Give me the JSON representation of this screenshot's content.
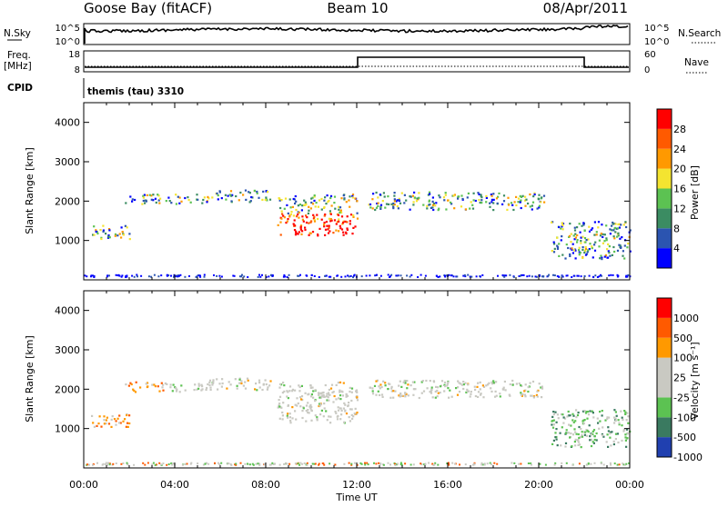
{
  "header": {
    "station": "Goose Bay (fitACF)",
    "beam": "Beam 10",
    "date": "08/Apr/2011"
  },
  "aux_panels": {
    "nsky_label": "N.Sky",
    "nsky_ticks": [
      "10^5",
      "10^0"
    ],
    "nsearch_label": "N.Search",
    "nsearch_ticks": [
      "10^5",
      "10^0"
    ],
    "freq_label": "Freq.",
    "freq_unit": "[MHz]",
    "freq_ticks": [
      "18",
      "8"
    ],
    "nave_label": "Nave",
    "nave_ticks": [
      "60",
      "0"
    ],
    "cpid_label": "CPID",
    "cpid_value": "themis (tau) 3310"
  },
  "chart_data": [
    {
      "type": "heatmap",
      "panel": "power",
      "ylabel": "Slant Range [km]",
      "x_ticks": [
        "00:00",
        "04:00",
        "08:00",
        "12:00",
        "16:00",
        "20:00",
        "00:00"
      ],
      "y_ticks": [
        "1000",
        "2000",
        "3000",
        "4000"
      ],
      "ylim": [
        0,
        4500
      ],
      "colorbar_label": "Power [dB]",
      "colorbar_ticks": [
        "28",
        "24",
        "20",
        "16",
        "12",
        "8",
        "4"
      ],
      "colorbar_colors": [
        "#0000ff",
        "#2b54b0",
        "#3b8c62",
        "#5cc252",
        "#f4e430",
        "#ff9900",
        "#ff5a00",
        "#ff0000"
      ],
      "echo_bands": [
        {
          "x": [
            0.3,
            2.0
          ],
          "y": [
            1050,
            1400
          ]
        },
        {
          "x": [
            1.8,
            5.5
          ],
          "y": [
            1950,
            2200
          ]
        },
        {
          "x": [
            5.5,
            8.2
          ],
          "y": [
            2000,
            2300
          ]
        },
        {
          "x": [
            8.5,
            12.0
          ],
          "y": [
            1150,
            2200
          ]
        },
        {
          "x": [
            12.5,
            20.2
          ],
          "y": [
            1800,
            2250
          ]
        },
        {
          "x": [
            20.5,
            24.0
          ],
          "y": [
            550,
            1500
          ]
        }
      ]
    },
    {
      "type": "heatmap",
      "panel": "velocity",
      "ylabel": "Slant Range [km]",
      "xlabel": "Time UT",
      "x_ticks": [
        "00:00",
        "04:00",
        "08:00",
        "12:00",
        "16:00",
        "20:00",
        "00:00"
      ],
      "y_ticks": [
        "1000",
        "2000",
        "3000",
        "4000"
      ],
      "ylim": [
        0,
        4500
      ],
      "colorbar_label": "Velocity [m s⁻¹]",
      "colorbar_ticks": [
        "1000",
        "500",
        "100",
        "25",
        "-25",
        "-100",
        "-500",
        "-1000"
      ],
      "colorbar_colors": [
        "#2040b0",
        "#3a7a60",
        "#5cc252",
        "#c9c9c2",
        "#c9c9c2",
        "#ff9900",
        "#ff5a00",
        "#ff0000"
      ],
      "echo_bands": [
        {
          "x": [
            0.3,
            2.0
          ],
          "y": [
            1050,
            1400
          ]
        },
        {
          "x": [
            1.8,
            5.5
          ],
          "y": [
            1950,
            2200
          ]
        },
        {
          "x": [
            5.5,
            8.2
          ],
          "y": [
            2000,
            2300
          ]
        },
        {
          "x": [
            8.5,
            12.0
          ],
          "y": [
            1150,
            2200
          ]
        },
        {
          "x": [
            12.5,
            20.2
          ],
          "y": [
            1800,
            2250
          ]
        },
        {
          "x": [
            20.5,
            24.0
          ],
          "y": [
            550,
            1500
          ]
        }
      ]
    }
  ]
}
